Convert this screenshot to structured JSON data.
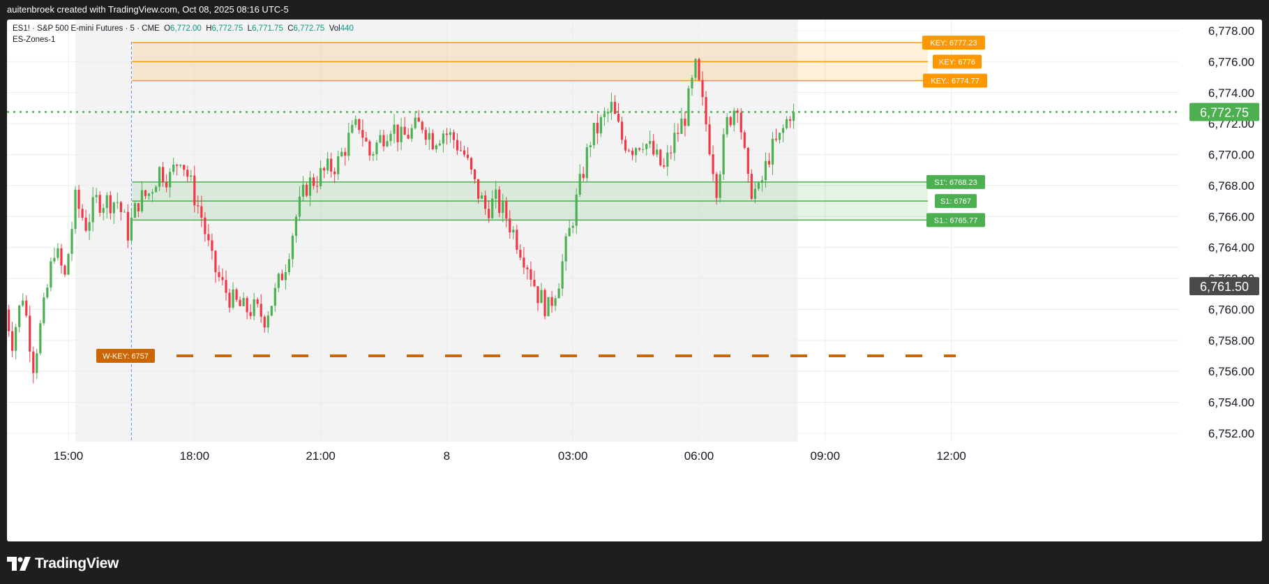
{
  "header": {
    "attribution": "auitenbroek created with TradingView.com, Oct 08, 2025 08:16 UTC-5"
  },
  "legend": {
    "symbol": "ES1! · S&P 500 E-mini Futures · 5 · CME",
    "open_label": "O",
    "open": "6,772.00",
    "high_label": "H",
    "high": "6,772.75",
    "low_label": "L",
    "low": "6,771.75",
    "close_label": "C",
    "close": "6,772.75",
    "vol_label": "Vol",
    "vol": "440",
    "indicator": "ES-Zones-1"
  },
  "footer": {
    "brand": "TradingView"
  },
  "colors": {
    "up": "#26a69a",
    "up_candle": "#4caf50",
    "down": "#f23645",
    "key_zone": "#ff9800",
    "support_zone": "#4caf50",
    "wkey": "#cc6600",
    "last_price": "#4caf50",
    "crosshair_badge": "#4a4a4a"
  },
  "chart_data": {
    "type": "candlestick",
    "symbol": "ES1!",
    "timeframe": "5",
    "x_ticks": [
      "15:00",
      "18:00",
      "21:00",
      "8",
      "03:00",
      "06:00",
      "09:00",
      "12:00"
    ],
    "y_ticks": [
      "6,752.00",
      "6,754.00",
      "6,756.00",
      "6,758.00",
      "6,760.00",
      "6,762.00",
      "6,764.00",
      "6,766.00",
      "6,768.00",
      "6,770.00",
      "6,772.00",
      "6,774.00",
      "6,776.00",
      "6,778.00"
    ],
    "ylim": [
      6751,
      6779
    ],
    "last_price": 6772.75,
    "last_price_label": "6,772.75",
    "crosshair_price": 6761.5,
    "crosshair_price_label": "6,761.50",
    "session_start": "16:30",
    "levels": [
      {
        "label": "KEY: 6777.23",
        "price": 6777.23,
        "group": "key"
      },
      {
        "label": "KEY: 6776",
        "price": 6776,
        "group": "key"
      },
      {
        "label": "KEY.: 6774.77",
        "price": 6774.77,
        "group": "key"
      },
      {
        "label": "S1': 6768.23",
        "price": 6768.23,
        "group": "support"
      },
      {
        "label": "S1: 6767",
        "price": 6767,
        "group": "support"
      },
      {
        "label": "S1.: 6765.77",
        "price": 6765.77,
        "group": "support"
      },
      {
        "label": "W-KEY: 6757",
        "price": 6757,
        "group": "weekly"
      }
    ],
    "price_path": [
      [
        "13:30",
        6761
      ],
      [
        "13:45",
        6758
      ],
      [
        "14:00",
        6761
      ],
      [
        "14:15",
        6756.5
      ],
      [
        "14:30",
        6760
      ],
      [
        "14:45",
        6764
      ],
      [
        "15:00",
        6762
      ],
      [
        "15:15",
        6767
      ],
      [
        "15:30",
        6765.5
      ],
      [
        "15:45",
        6767
      ],
      [
        "16:00",
        6767
      ],
      [
        "16:15",
        6767
      ],
      [
        "16:30",
        6765
      ],
      [
        "16:45",
        6767
      ],
      [
        "17:00",
        6767.5
      ],
      [
        "17:15",
        6769
      ],
      [
        "17:30",
        6768.5
      ],
      [
        "17:45",
        6770
      ],
      [
        "18:00",
        6768
      ],
      [
        "18:15",
        6766
      ],
      [
        "18:30",
        6763
      ],
      [
        "18:45",
        6761.5
      ],
      [
        "19:00",
        6760.5
      ],
      [
        "19:15",
        6760
      ],
      [
        "19:30",
        6760
      ],
      [
        "19:45",
        6759.5
      ],
      [
        "20:00",
        6761
      ],
      [
        "20:15",
        6763
      ],
      [
        "20:30",
        6766
      ],
      [
        "20:45",
        6768
      ],
      [
        "21:00",
        6768.5
      ],
      [
        "21:15",
        6769
      ],
      [
        "21:30",
        6769.5
      ],
      [
        "21:45",
        6771
      ],
      [
        "22:00",
        6772
      ],
      [
        "22:15",
        6770
      ],
      [
        "22:30",
        6771
      ],
      [
        "22:45",
        6772
      ],
      [
        "23:00",
        6771
      ],
      [
        "23:15",
        6771.5
      ],
      [
        "23:30",
        6772
      ],
      [
        "23:45",
        6771
      ],
      [
        "00:00",
        6771.5
      ],
      [
        "00:15",
        6771
      ],
      [
        "00:30",
        6770
      ],
      [
        "00:45",
        6768
      ],
      [
        "01:00",
        6766.5
      ],
      [
        "01:15",
        6767
      ],
      [
        "01:30",
        6766
      ],
      [
        "01:45",
        6764.5
      ],
      [
        "02:00",
        6763
      ],
      [
        "02:15",
        6761
      ],
      [
        "02:30",
        6760
      ],
      [
        "02:45",
        6762
      ],
      [
        "03:00",
        6765
      ],
      [
        "03:15",
        6768
      ],
      [
        "03:30",
        6771
      ],
      [
        "03:45",
        6772
      ],
      [
        "04:00",
        6773
      ],
      [
        "04:15",
        6771
      ],
      [
        "04:30",
        6770.5
      ],
      [
        "04:45",
        6771
      ],
      [
        "05:00",
        6770
      ],
      [
        "05:15",
        6769
      ],
      [
        "05:30",
        6771
      ],
      [
        "05:45",
        6772.5
      ],
      [
        "06:00",
        6775.5
      ],
      [
        "06:15",
        6772
      ],
      [
        "06:30",
        6768
      ],
      [
        "06:45",
        6772
      ],
      [
        "07:00",
        6773.5
      ],
      [
        "07:15",
        6768
      ],
      [
        "07:30",
        6767.5
      ],
      [
        "07:45",
        6770
      ],
      [
        "08:00",
        6771
      ],
      [
        "08:15",
        6772.75
      ]
    ]
  }
}
